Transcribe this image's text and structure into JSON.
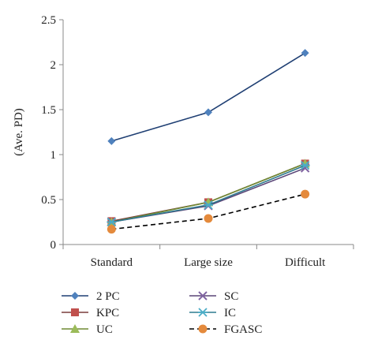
{
  "chart_data": {
    "type": "line",
    "title": "",
    "xlabel": "",
    "ylabel": "(Ave. PD)",
    "categories": [
      "Standard",
      "Large size",
      "Difficult"
    ],
    "ylim": [
      0,
      2.5
    ],
    "yticks": [
      "0",
      "0.5",
      "1",
      "1.5",
      "2",
      "2.5"
    ],
    "grid": false,
    "legend_position": "bottom",
    "series": [
      {
        "name": "2 PC",
        "values": [
          1.15,
          1.47,
          2.13
        ],
        "color": "#1f3f73",
        "marker": "diamond",
        "marker_color": "#4f81bd",
        "dash": false
      },
      {
        "name": "KPC",
        "values": [
          0.26,
          0.47,
          0.9
        ],
        "color": "#7a3d3b",
        "marker": "square",
        "marker_color": "#c0504d",
        "dash": false
      },
      {
        "name": "UC",
        "values": [
          0.25,
          0.47,
          0.9
        ],
        "color": "#6f8a34",
        "marker": "triangle",
        "marker_color": "#9bbb59",
        "dash": false
      },
      {
        "name": "SC",
        "values": [
          0.25,
          0.43,
          0.85
        ],
        "color": "#5a4577",
        "marker": "x",
        "marker_color": "#8064a2",
        "dash": false
      },
      {
        "name": "IC",
        "values": [
          0.25,
          0.44,
          0.88
        ],
        "color": "#2e7b8f",
        "marker": "asterisk",
        "marker_color": "#4bacc6",
        "dash": false
      },
      {
        "name": "FGASC",
        "values": [
          0.17,
          0.29,
          0.56
        ],
        "color": "#000000",
        "marker": "circle",
        "marker_color": "#e48a3c",
        "dash": true
      }
    ]
  }
}
